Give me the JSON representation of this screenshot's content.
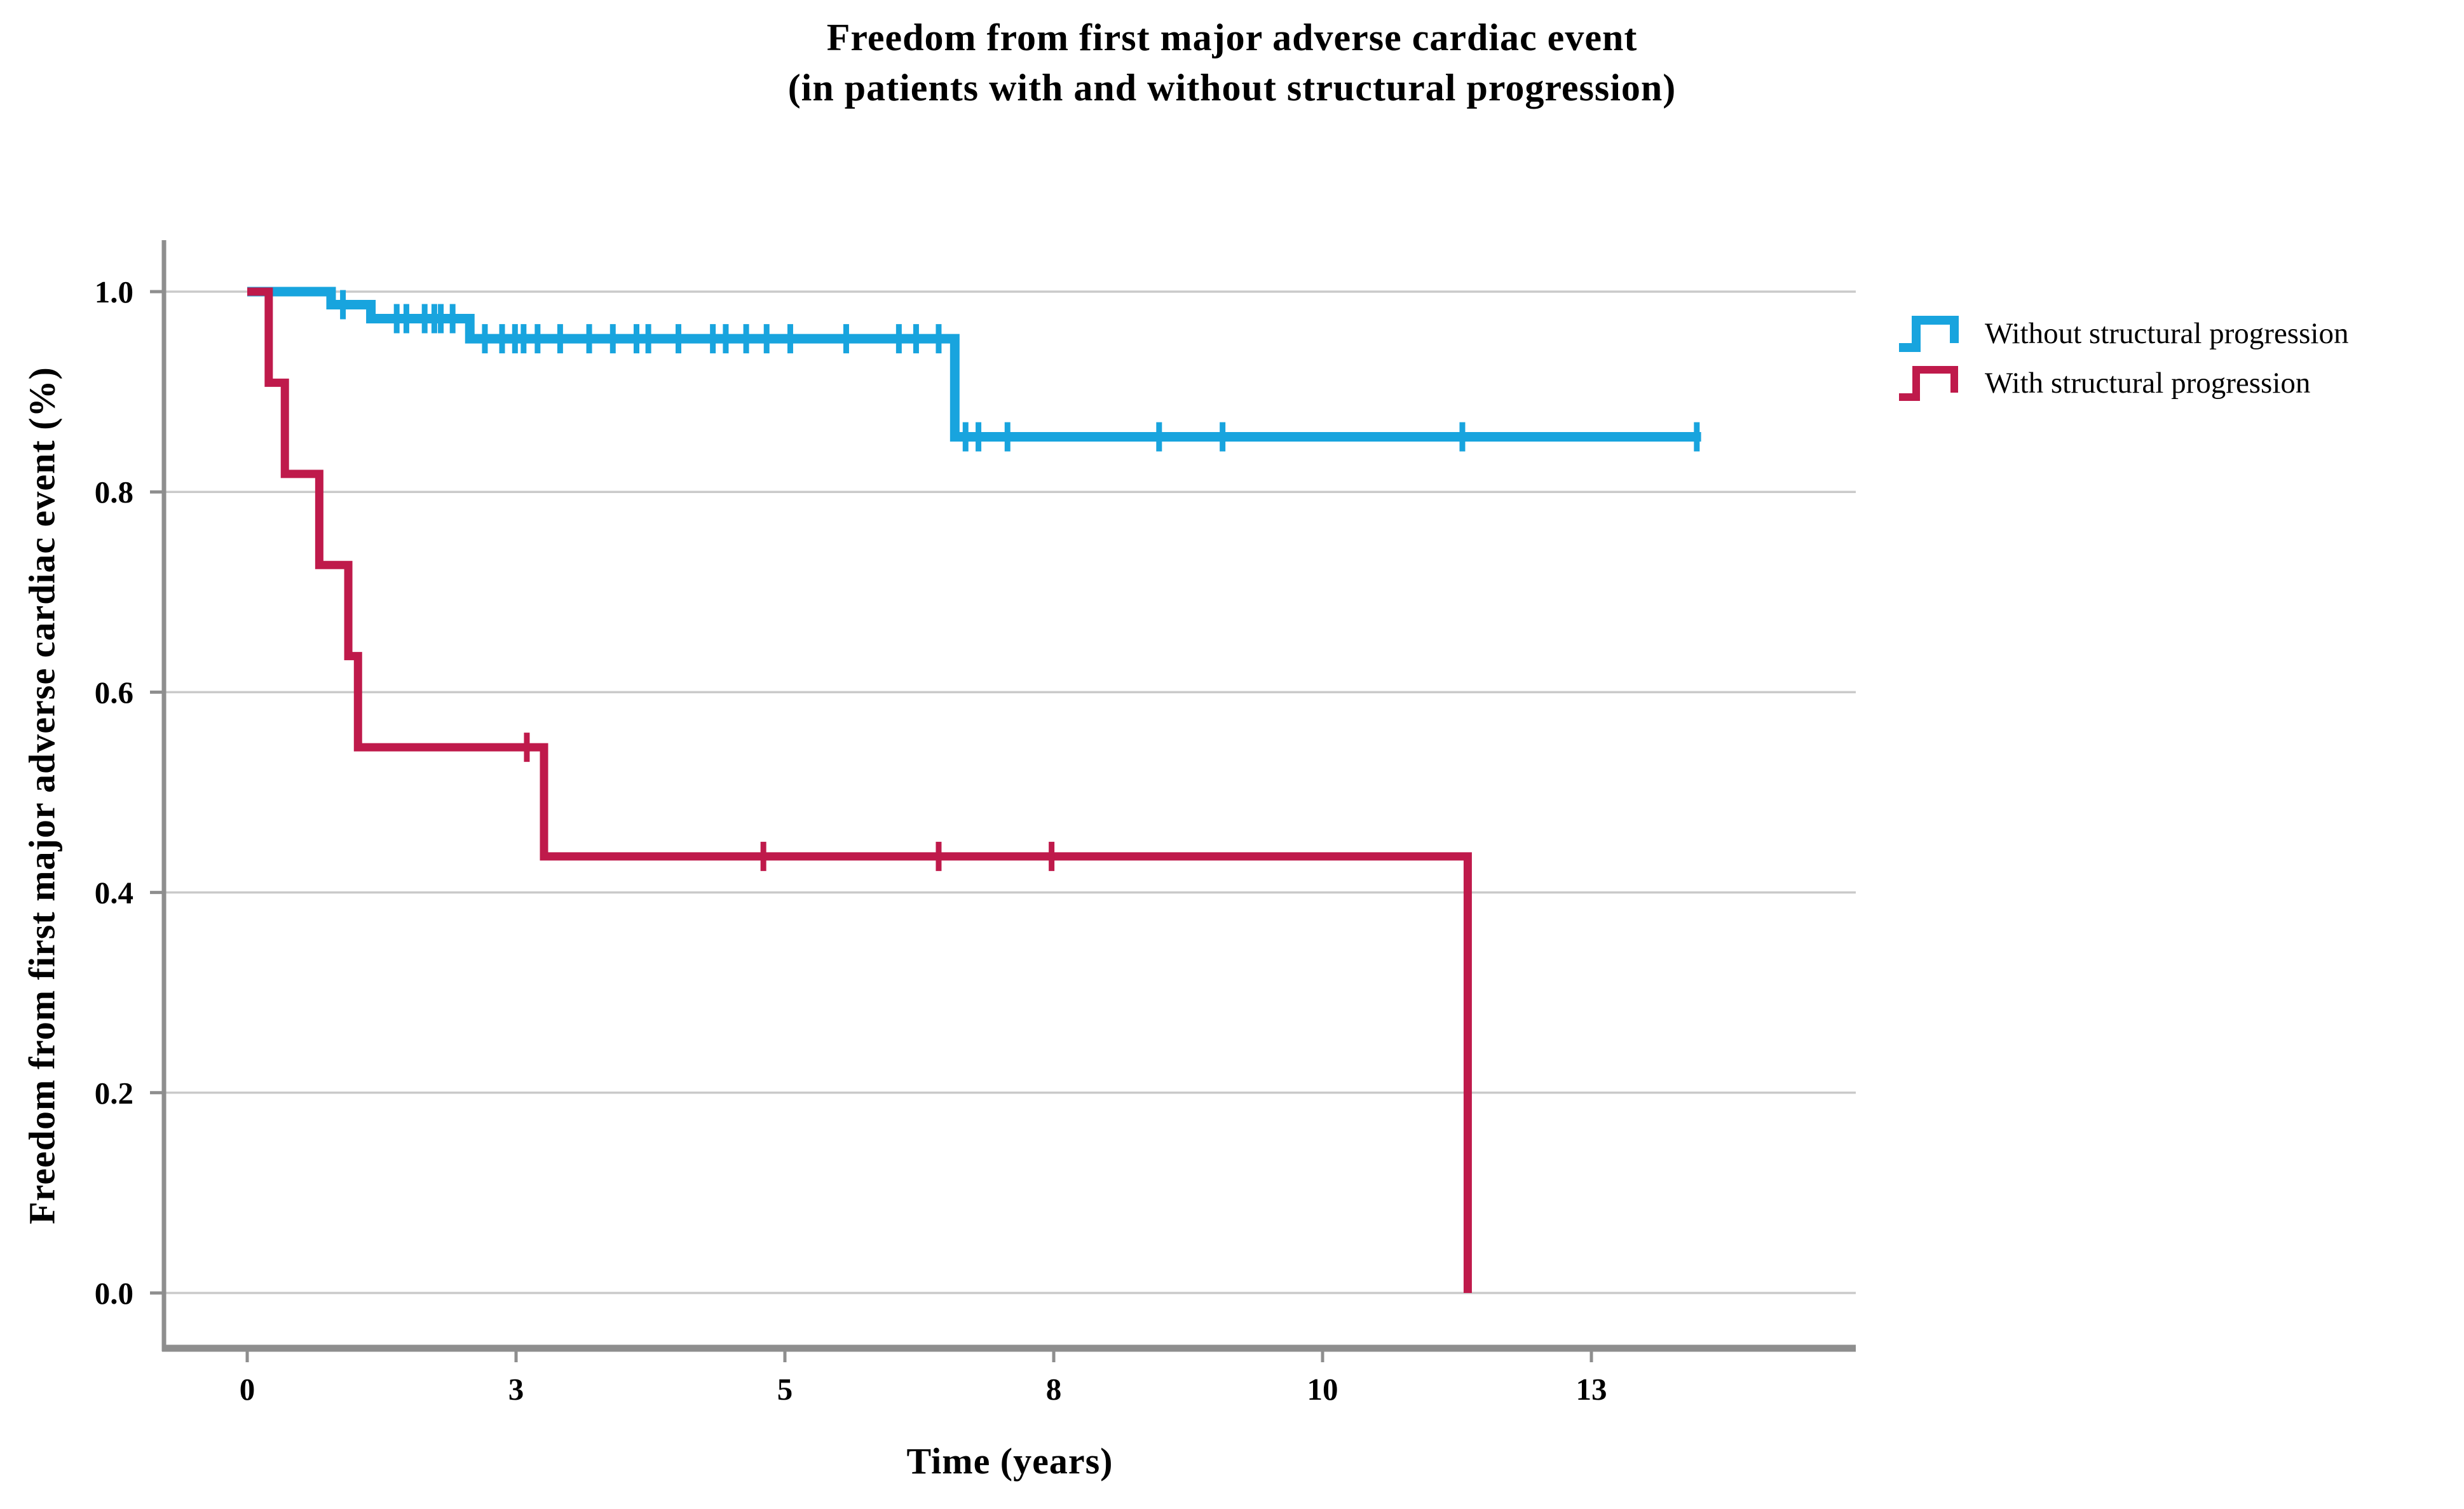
{
  "chart_data": {
    "type": "line",
    "subtype": "kaplan-meier-step-function",
    "title": "Freedom from first major adverse cardiac event",
    "subtitle": "(in patients with and without structural progression)",
    "xlabel": "Time (years)",
    "ylabel": "Freedom from first major adverse cardiac event (%)",
    "xlim": [
      -0.77,
      14.96
    ],
    "ylim": [
      0.0,
      1.0
    ],
    "grid": "horizontal",
    "legend_position": "top-right",
    "x_ticks": [
      {
        "value": 0,
        "label": "0"
      },
      {
        "value": 2.5,
        "label": "3"
      },
      {
        "value": 5,
        "label": "5"
      },
      {
        "value": 7.5,
        "label": "8"
      },
      {
        "value": 10,
        "label": "10"
      },
      {
        "value": 12.5,
        "label": "13"
      }
    ],
    "y_ticks": [
      {
        "value": 1.0,
        "label": "1.0"
      },
      {
        "value": 0.8,
        "label": "0.8"
      },
      {
        "value": 0.6,
        "label": "0.6"
      },
      {
        "value": 0.4,
        "label": "0.4"
      },
      {
        "value": 0.2,
        "label": "0.2"
      },
      {
        "value": 0.0,
        "label": "0.0"
      }
    ],
    "colors": {
      "grid": "#cacaca",
      "axis": "#8e8e8e",
      "text": "#000000"
    },
    "series": [
      {
        "name": "Without structural progression",
        "color": "#18a4de",
        "line_width": 15,
        "steps": [
          [
            0,
            1.0
          ],
          [
            0.78,
            0.987
          ],
          [
            1.15,
            0.973
          ],
          [
            2.07,
            0.953
          ],
          [
            6.58,
            0.855
          ]
        ],
        "end_x": 13.52,
        "censor_times": [
          0.89,
          1.39,
          1.48,
          1.65,
          1.74,
          1.8,
          1.91,
          2.21,
          2.37,
          2.49,
          2.57,
          2.7,
          2.91,
          3.18,
          3.4,
          3.62,
          3.73,
          4.01,
          4.33,
          4.45,
          4.64,
          4.83,
          5.05,
          5.57,
          6.06,
          6.22,
          6.43,
          6.68,
          6.8,
          7.07,
          8.48,
          9.07,
          11.3,
          13.48
        ]
      },
      {
        "name": "With structural progression",
        "color": "#bf1a4b",
        "line_width": 13,
        "steps": [
          [
            0,
            1.0
          ],
          [
            0.2,
            0.909
          ],
          [
            0.35,
            0.818
          ],
          [
            0.67,
            0.727
          ],
          [
            0.94,
            0.636
          ],
          [
            1.03,
            0.545
          ],
          [
            2.76,
            0.436
          ],
          [
            11.35,
            0.0
          ]
        ],
        "end_x": 11.35,
        "censor_times": [
          2.6,
          4.8,
          6.43,
          7.48
        ]
      }
    ]
  }
}
